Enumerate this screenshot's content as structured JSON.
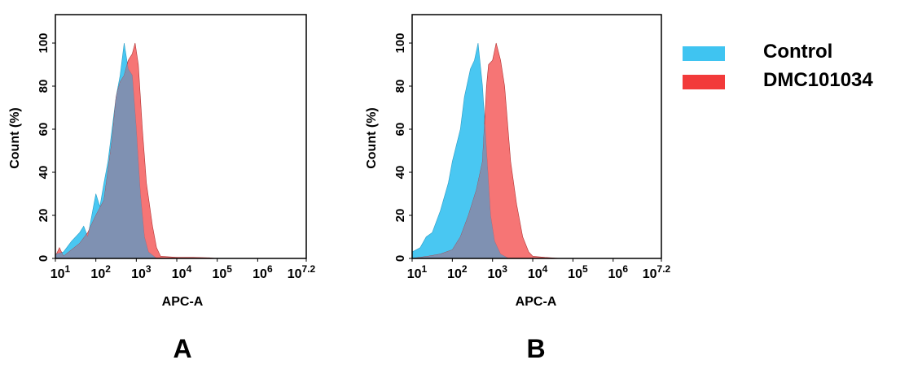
{
  "legend": {
    "items": [
      {
        "label": "Control",
        "color": "#3fc4f1"
      },
      {
        "label": "DMC101034",
        "color": "#f23a3a"
      }
    ],
    "placement": "right"
  },
  "overlap_color": "#7f91b2",
  "chart_data": [
    {
      "type": "area",
      "panel_label": "A",
      "xlabel": "APC-A",
      "ylabel": "Count (%)",
      "xscale": "log",
      "xlim_log10": [
        1,
        7.2
      ],
      "ylim": [
        0,
        110
      ],
      "x_ticks": [
        {
          "base": "10",
          "exp": "1"
        },
        {
          "base": "10",
          "exp": "2"
        },
        {
          "base": "10",
          "exp": "3"
        },
        {
          "base": "10",
          "exp": "4"
        },
        {
          "base": "10",
          "exp": "5"
        },
        {
          "base": "10",
          "exp": "6"
        },
        {
          "base": "10",
          "exp": "7.2"
        }
      ],
      "y_ticks": [
        "0",
        "20",
        "40",
        "60",
        "80",
        "100"
      ],
      "series": [
        {
          "name": "Control",
          "log10_x": [
            1.0,
            1.2,
            1.4,
            1.6,
            1.7,
            1.8,
            2.0,
            2.1,
            2.2,
            2.3,
            2.4,
            2.5,
            2.6,
            2.7,
            2.8,
            2.9,
            3.0,
            3.1,
            3.2,
            3.3,
            3.5
          ],
          "y": [
            2,
            3,
            8,
            12,
            15,
            10,
            30,
            24,
            35,
            45,
            60,
            75,
            85,
            100,
            88,
            85,
            60,
            30,
            10,
            3,
            0
          ]
        },
        {
          "name": "DMC101034",
          "log10_x": [
            1.0,
            1.1,
            1.2,
            1.4,
            1.6,
            1.8,
            2.0,
            2.2,
            2.4,
            2.5,
            2.6,
            2.7,
            2.8,
            2.9,
            2.97,
            3.05,
            3.15,
            3.25,
            3.4,
            3.5,
            3.6,
            4.0,
            4.4,
            4.8,
            5.0
          ],
          "y": [
            1,
            5,
            1,
            4,
            7,
            12,
            20,
            27,
            55,
            75,
            82,
            85,
            92,
            95,
            100,
            90,
            60,
            35,
            15,
            5,
            1,
            0.5,
            0.5,
            0.3,
            0
          ]
        }
      ]
    },
    {
      "type": "area",
      "panel_label": "B",
      "xlabel": "APC-A",
      "ylabel": "Count (%)",
      "xscale": "log",
      "xlim_log10": [
        1,
        7.2
      ],
      "ylim": [
        0,
        110
      ],
      "x_ticks": [
        {
          "base": "10",
          "exp": "1"
        },
        {
          "base": "10",
          "exp": "2"
        },
        {
          "base": "10",
          "exp": "3"
        },
        {
          "base": "10",
          "exp": "4"
        },
        {
          "base": "10",
          "exp": "5"
        },
        {
          "base": "10",
          "exp": "6"
        },
        {
          "base": "10",
          "exp": "7.2"
        }
      ],
      "y_ticks": [
        "0",
        "20",
        "40",
        "60",
        "80",
        "100"
      ],
      "series": [
        {
          "name": "Control",
          "log10_x": [
            1.0,
            1.2,
            1.35,
            1.5,
            1.7,
            1.9,
            2.0,
            2.2,
            2.3,
            2.45,
            2.55,
            2.64,
            2.75,
            2.85,
            2.95,
            3.05,
            3.2,
            3.4
          ],
          "y": [
            3,
            5,
            10,
            12,
            22,
            35,
            45,
            60,
            75,
            88,
            92,
            100,
            80,
            50,
            20,
            8,
            2,
            0
          ]
        },
        {
          "name": "DMC101034",
          "log10_x": [
            1.0,
            1.4,
            1.7,
            2.0,
            2.2,
            2.4,
            2.6,
            2.75,
            2.85,
            2.9,
            3.0,
            3.09,
            3.2,
            3.3,
            3.45,
            3.6,
            3.75,
            3.9,
            4.0,
            4.3,
            4.7
          ],
          "y": [
            0,
            1,
            2,
            4,
            10,
            20,
            32,
            45,
            80,
            90,
            92,
            100,
            92,
            80,
            45,
            25,
            10,
            3,
            1,
            0.5,
            0
          ]
        }
      ]
    }
  ]
}
